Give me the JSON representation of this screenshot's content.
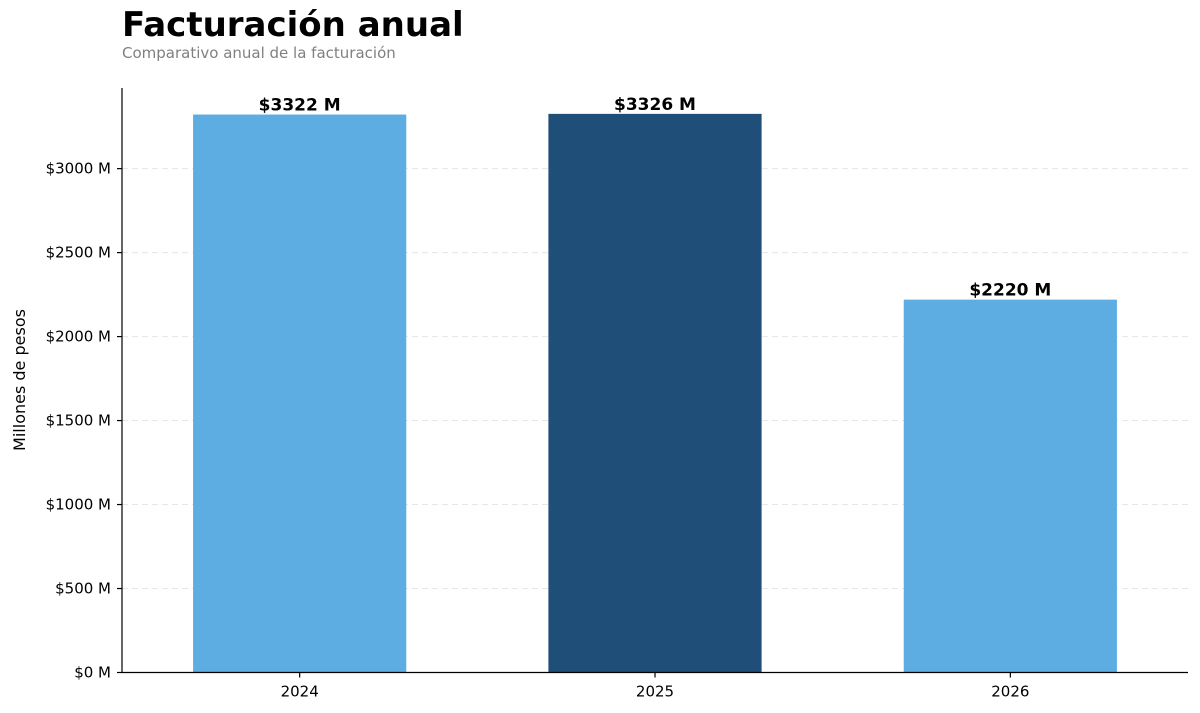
{
  "chart_data": {
    "type": "bar",
    "title": "Facturación anual",
    "subtitle": "Comparativo anual de la facturación",
    "xlabel": "",
    "ylabel": "Millones de pesos",
    "categories": [
      "2024",
      "2025",
      "2026"
    ],
    "values": [
      3322,
      3326,
      2220
    ],
    "data_labels": [
      "$3322 M",
      "$3326 M",
      "$2220 M"
    ],
    "bar_colors": [
      "#5dade2",
      "#1f4e79",
      "#5dade2"
    ],
    "ylim": [
      0,
      3480
    ],
    "yticks": [
      0,
      500,
      1000,
      1500,
      2000,
      2500,
      3000
    ],
    "ytick_labels": [
      "$0 M",
      "$500 M",
      "$1000 M",
      "$1500 M",
      "$2000 M",
      "$2500 M",
      "$3000 M"
    ],
    "grid": true,
    "grid_axis": "y",
    "grid_style": "dashed",
    "grid_color": "#e6e6e6",
    "legend": false
  }
}
